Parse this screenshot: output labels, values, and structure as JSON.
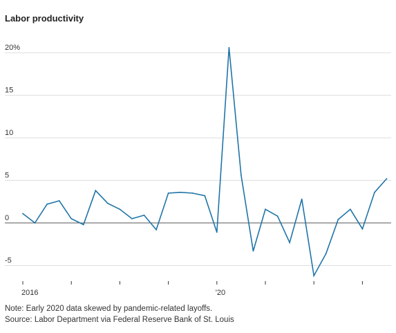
{
  "title": "Labor productivity",
  "chart_data": {
    "type": "line",
    "title": "Labor productivity",
    "xlabel": "",
    "ylabel": "",
    "y_ticks": [
      "20%",
      "15",
      "10",
      "5",
      "0",
      "-5"
    ],
    "y_tick_values": [
      20,
      15,
      10,
      5,
      0,
      -5
    ],
    "ylim": [
      -6.5,
      21
    ],
    "x_tick_labels": [
      {
        "index": 0,
        "label": "2016"
      },
      {
        "index": 16,
        "label": "'20"
      }
    ],
    "x_minor_tick_indices": [
      4,
      8,
      12,
      20,
      24,
      28
    ],
    "grid": true,
    "series": [
      {
        "color": "#1f74a8",
        "x": [
          "2016 Q1",
          "2016 Q2",
          "2016 Q3",
          "2016 Q4",
          "2017 Q1",
          "2017 Q2",
          "2017 Q3",
          "2017 Q4",
          "2018 Q1",
          "2018 Q2",
          "2018 Q3",
          "2018 Q4",
          "2019 Q1",
          "2019 Q2",
          "2019 Q3",
          "2019 Q4",
          "2020 Q1",
          "2020 Q2",
          "2020 Q3",
          "2020 Q4",
          "2021 Q1",
          "2021 Q2",
          "2021 Q3",
          "2021 Q4",
          "2022 Q1",
          "2022 Q2",
          "2022 Q3",
          "2022 Q4",
          "2023 Q1",
          "2023 Q2",
          "2023 Q3"
        ],
        "values": [
          1.1,
          0.0,
          2.2,
          2.6,
          0.5,
          -0.2,
          3.8,
          2.3,
          1.6,
          0.5,
          0.9,
          -0.8,
          3.5,
          3.6,
          3.5,
          3.2,
          -1.1,
          20.6,
          5.6,
          -3.3,
          1.6,
          0.8,
          -2.3,
          2.8,
          -6.2,
          -3.6,
          0.4,
          1.6,
          -0.7,
          3.6,
          5.2
        ]
      }
    ]
  },
  "notes": {
    "note": "Note: Early 2020 data skewed by pandemic-related layoffs.",
    "source": "Source: Labor Department via Federal Reserve Bank of St. Louis"
  },
  "colors": {
    "line": "#1f74a8",
    "grid": "#dddddd",
    "zero_line": "#555555",
    "axis": "#333333"
  }
}
